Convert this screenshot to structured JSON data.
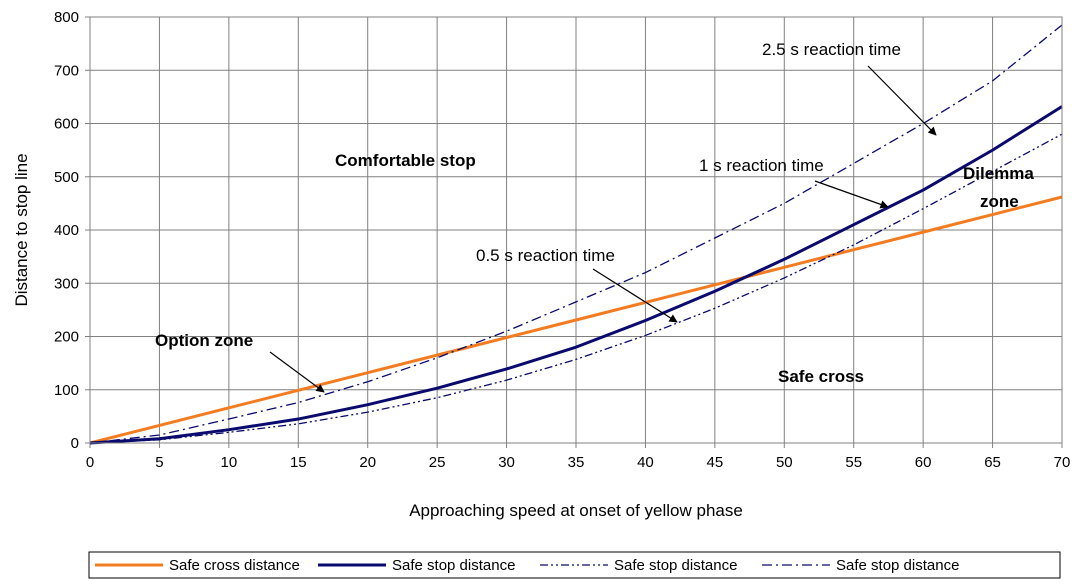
{
  "chart_data": {
    "type": "line",
    "title": "",
    "xlabel": "Approaching speed at onset of yellow phase",
    "ylabel": "Distance to stop line",
    "xlim": [
      0,
      70
    ],
    "ylim": [
      0,
      800
    ],
    "xticks": [
      0,
      5,
      10,
      15,
      20,
      25,
      30,
      35,
      40,
      45,
      50,
      55,
      60,
      65,
      70
    ],
    "yticks": [
      0,
      100,
      200,
      300,
      400,
      500,
      600,
      700,
      800
    ],
    "grid": true,
    "legend_position": "bottom",
    "x": [
      0,
      5,
      10,
      15,
      20,
      25,
      30,
      35,
      40,
      45,
      50,
      55,
      60,
      65,
      70
    ],
    "series": [
      {
        "name": "Safe cross distance",
        "color": "#f47c20",
        "style": "solid",
        "values": [
          0,
          33,
          66,
          99,
          132,
          165,
          198,
          231,
          264,
          297,
          330,
          363,
          396,
          429,
          462
        ]
      },
      {
        "name": "Safe stop distance",
        "color": "#0a0a6e",
        "style": "solid",
        "values": [
          0,
          8,
          25,
          45,
          72,
          103,
          139,
          180,
          230,
          285,
          345,
          410,
          475,
          550,
          632
        ]
      },
      {
        "name": "Safe stop distance",
        "color": "#0a0a6e",
        "style": "dash-dot-dot",
        "values": [
          0,
          6,
          20,
          36,
          58,
          85,
          118,
          157,
          202,
          253,
          310,
          372,
          440,
          510,
          580
        ]
      },
      {
        "name": "Safe stop distance",
        "color": "#0a0a6e",
        "style": "dash-dot",
        "values": [
          0,
          15,
          45,
          76,
          115,
          160,
          210,
          265,
          320,
          385,
          450,
          525,
          600,
          680,
          785
        ]
      }
    ],
    "annotations": [
      {
        "text": "2.5 s reaction time",
        "bold": false
      },
      {
        "text": "1 s reaction time",
        "bold": false
      },
      {
        "text": "0.5 s reaction time",
        "bold": false
      },
      {
        "text": "Comfortable stop",
        "bold": true
      },
      {
        "text": "Option zone",
        "bold": true
      },
      {
        "text": "Safe cross",
        "bold": true
      },
      {
        "text": "Dilemma",
        "bold": true
      },
      {
        "text": "zone",
        "bold": true
      }
    ]
  }
}
